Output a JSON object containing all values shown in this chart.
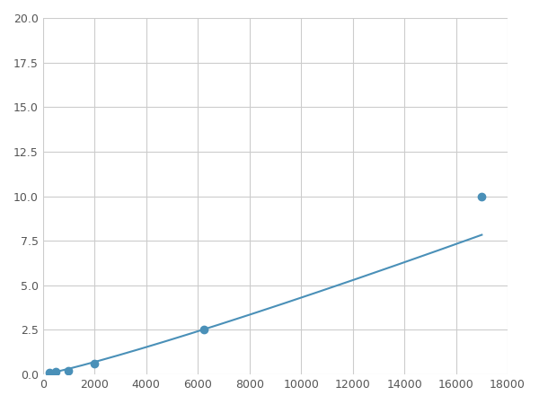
{
  "x_points": [
    250,
    500,
    1000,
    2000,
    6250,
    17000
  ],
  "y_points": [
    0.1,
    0.15,
    0.2,
    0.6,
    2.5,
    10.0
  ],
  "line_color": "#4A90B8",
  "marker_color": "#4A90B8",
  "marker_size": 6,
  "xlim": [
    0,
    18000
  ],
  "ylim": [
    0,
    20.0
  ],
  "xticks": [
    0,
    2000,
    4000,
    6000,
    8000,
    10000,
    12000,
    14000,
    16000,
    18000
  ],
  "yticks": [
    0.0,
    2.5,
    5.0,
    7.5,
    10.0,
    12.5,
    15.0,
    17.5,
    20.0
  ],
  "grid_color": "#cccccc",
  "background_color": "#ffffff",
  "figsize": [
    6.0,
    4.5
  ],
  "dpi": 100
}
